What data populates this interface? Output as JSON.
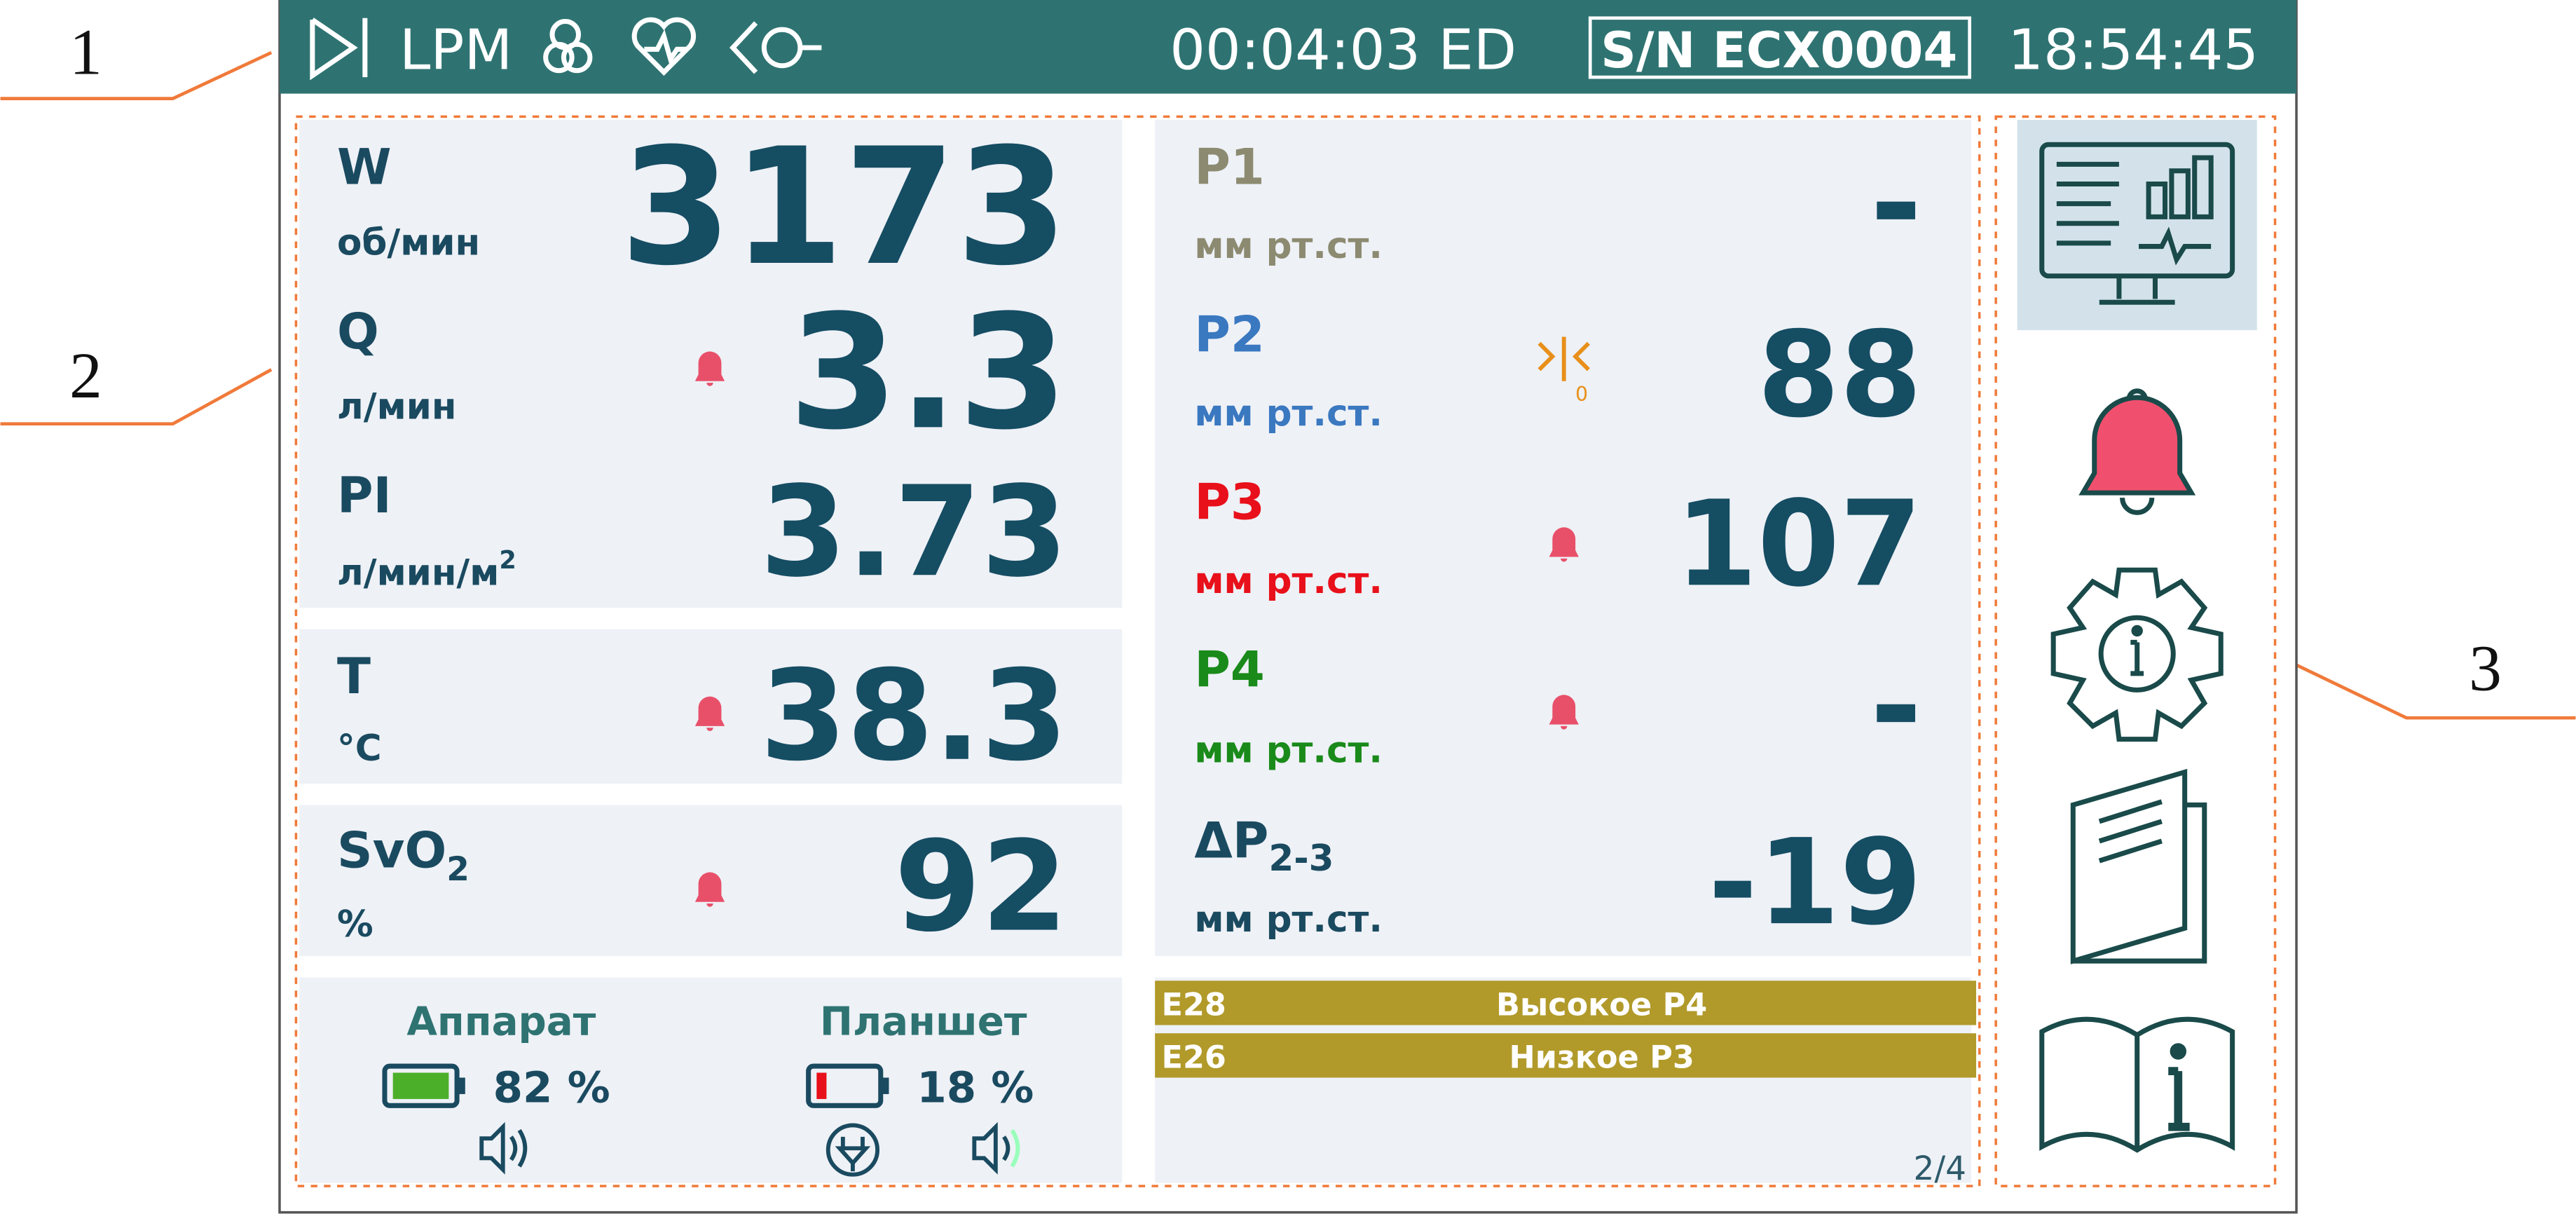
{
  "callouts": [
    "1",
    "2",
    "3"
  ],
  "header": {
    "mode": "LPM",
    "timer": "00:04:03 ED",
    "serial": "S/N ECX0004",
    "clock": "18:54:45"
  },
  "left_params": [
    {
      "name": "W",
      "unit": "об/мин",
      "value": "3173"
    },
    {
      "name": "Q",
      "unit": "л/мин",
      "value": "3.3"
    },
    {
      "name": "PI",
      "unit": "л/мин/м",
      "unit_sup": "2",
      "value": "3.73"
    },
    {
      "name": "T",
      "unit": "°C",
      "value": "38.3"
    },
    {
      "name": "SvO",
      "name_sub": "2",
      "unit": "%",
      "value": "92"
    }
  ],
  "right_params": [
    {
      "name": "P1",
      "unit": "мм рт.ст.",
      "value": "-"
    },
    {
      "name": "P2",
      "unit": "мм рт.ст.",
      "value": "88",
      "zero_mark": "0"
    },
    {
      "name": "P3",
      "unit": "мм рт.ст.",
      "value": "107"
    },
    {
      "name": "P4",
      "unit": "мм рт.ст.",
      "value": "-"
    },
    {
      "name": "ΔP",
      "name_sub": "2-3",
      "unit": "мм рт.ст.",
      "value": "-19"
    }
  ],
  "batteries": [
    {
      "label": "Аппарат",
      "level": "82 %"
    },
    {
      "label": "Планшет",
      "level": "18 %"
    }
  ],
  "alarms": [
    {
      "code": "E28",
      "text": "Высокое P4"
    },
    {
      "code": "E26",
      "text": "Низкое P3"
    }
  ],
  "page_indicator": "2/4"
}
